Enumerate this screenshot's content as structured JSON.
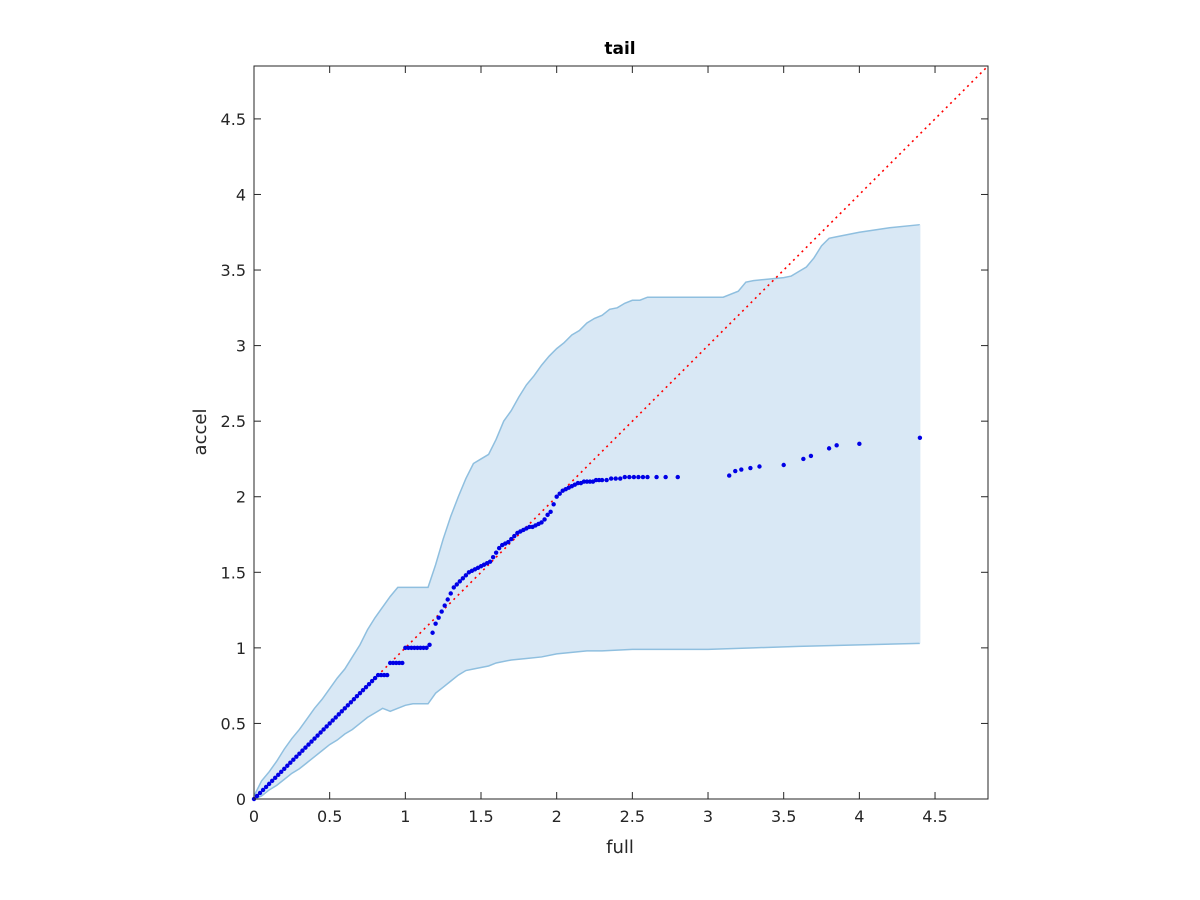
{
  "chart_data": {
    "type": "scatter",
    "title": "tail",
    "xlabel": "full",
    "ylabel": "accel",
    "xlim": [
      0,
      4.85
    ],
    "ylim": [
      0,
      4.85
    ],
    "xticks": [
      0,
      0.5,
      1,
      1.5,
      2,
      2.5,
      3,
      3.5,
      4,
      4.5
    ],
    "yticks": [
      0,
      0.5,
      1,
      1.5,
      2,
      2.5,
      3,
      3.5,
      4,
      4.5
    ],
    "xtick_labels": [
      "0",
      "0.5",
      "1",
      "1.5",
      "2",
      "2.5",
      "3",
      "3.5",
      "4",
      "4.5"
    ],
    "ytick_labels": [
      "0",
      "0.5",
      "1",
      "1.5",
      "2",
      "2.5",
      "3",
      "3.5",
      "4",
      "4.5"
    ],
    "grid": false,
    "colors": {
      "points": "#0000e6",
      "band_fill": "#d9e8f5",
      "band_edge": "#8fbfdf",
      "reference_line": "#ff0000"
    },
    "reference_line": {
      "x": [
        0,
        4.85
      ],
      "y": [
        0,
        4.85
      ],
      "style": "dotted"
    },
    "band_upper": {
      "x": [
        0,
        0.05,
        0.1,
        0.15,
        0.2,
        0.25,
        0.3,
        0.35,
        0.4,
        0.45,
        0.5,
        0.55,
        0.6,
        0.65,
        0.7,
        0.75,
        0.8,
        0.85,
        0.9,
        0.95,
        1.0,
        1.05,
        1.15,
        1.2,
        1.25,
        1.3,
        1.35,
        1.4,
        1.45,
        1.5,
        1.55,
        1.6,
        1.65,
        1.7,
        1.75,
        1.8,
        1.85,
        1.9,
        1.95,
        2.0,
        2.05,
        2.1,
        2.15,
        2.2,
        2.25,
        2.3,
        2.35,
        2.4,
        2.45,
        2.5,
        2.55,
        2.6,
        2.65,
        2.7,
        2.8,
        2.9,
        3.0,
        3.1,
        3.2,
        3.25,
        3.3,
        3.4,
        3.5,
        3.55,
        3.6,
        3.65,
        3.7,
        3.75,
        3.8,
        3.85,
        3.9,
        4.0,
        4.2,
        4.4
      ],
      "y": [
        0.02,
        0.12,
        0.18,
        0.25,
        0.33,
        0.4,
        0.46,
        0.53,
        0.6,
        0.66,
        0.73,
        0.8,
        0.86,
        0.94,
        1.02,
        1.12,
        1.2,
        1.27,
        1.34,
        1.4,
        1.4,
        1.4,
        1.4,
        1.55,
        1.72,
        1.87,
        2.0,
        2.12,
        2.22,
        2.25,
        2.28,
        2.38,
        2.5,
        2.57,
        2.66,
        2.74,
        2.8,
        2.87,
        2.93,
        2.98,
        3.02,
        3.07,
        3.1,
        3.15,
        3.18,
        3.2,
        3.24,
        3.25,
        3.28,
        3.3,
        3.3,
        3.32,
        3.32,
        3.32,
        3.32,
        3.32,
        3.32,
        3.32,
        3.36,
        3.42,
        3.43,
        3.44,
        3.45,
        3.46,
        3.49,
        3.52,
        3.58,
        3.66,
        3.71,
        3.72,
        3.73,
        3.75,
        3.78,
        3.8
      ]
    },
    "band_lower": {
      "x": [
        0,
        0.05,
        0.1,
        0.15,
        0.2,
        0.25,
        0.3,
        0.35,
        0.4,
        0.45,
        0.5,
        0.55,
        0.6,
        0.65,
        0.7,
        0.75,
        0.8,
        0.85,
        0.9,
        0.95,
        1.0,
        1.05,
        1.1,
        1.15,
        1.2,
        1.25,
        1.3,
        1.35,
        1.4,
        1.45,
        1.5,
        1.55,
        1.6,
        1.7,
        1.8,
        1.9,
        2.0,
        2.1,
        2.2,
        2.3,
        2.5,
        2.7,
        3.0,
        3.3,
        3.6,
        4.0,
        4.4
      ],
      "y": [
        0.0,
        0.02,
        0.06,
        0.09,
        0.13,
        0.17,
        0.2,
        0.24,
        0.28,
        0.32,
        0.36,
        0.39,
        0.43,
        0.46,
        0.5,
        0.54,
        0.57,
        0.6,
        0.58,
        0.6,
        0.62,
        0.63,
        0.63,
        0.63,
        0.7,
        0.74,
        0.78,
        0.82,
        0.85,
        0.86,
        0.87,
        0.88,
        0.9,
        0.92,
        0.93,
        0.94,
        0.96,
        0.97,
        0.98,
        0.98,
        0.99,
        0.99,
        0.99,
        1.0,
        1.01,
        1.02,
        1.03
      ]
    },
    "points": {
      "x": [
        0.0,
        0.02,
        0.04,
        0.06,
        0.08,
        0.1,
        0.12,
        0.14,
        0.16,
        0.18,
        0.2,
        0.22,
        0.24,
        0.26,
        0.28,
        0.3,
        0.32,
        0.34,
        0.36,
        0.38,
        0.4,
        0.42,
        0.44,
        0.46,
        0.48,
        0.5,
        0.52,
        0.54,
        0.56,
        0.58,
        0.6,
        0.62,
        0.64,
        0.66,
        0.68,
        0.7,
        0.72,
        0.74,
        0.76,
        0.78,
        0.8,
        0.82,
        0.84,
        0.86,
        0.88,
        0.9,
        0.92,
        0.94,
        0.96,
        0.98,
        1.0,
        1.02,
        1.04,
        1.06,
        1.08,
        1.1,
        1.12,
        1.14,
        1.16,
        1.18,
        1.2,
        1.22,
        1.24,
        1.26,
        1.28,
        1.3,
        1.32,
        1.34,
        1.36,
        1.38,
        1.4,
        1.42,
        1.44,
        1.46,
        1.48,
        1.5,
        1.52,
        1.54,
        1.56,
        1.58,
        1.6,
        1.62,
        1.64,
        1.66,
        1.68,
        1.7,
        1.72,
        1.74,
        1.76,
        1.78,
        1.8,
        1.82,
        1.84,
        1.86,
        1.88,
        1.9,
        1.92,
        1.94,
        1.96,
        1.98,
        2.0,
        2.02,
        2.04,
        2.06,
        2.08,
        2.1,
        2.12,
        2.14,
        2.16,
        2.18,
        2.2,
        2.22,
        2.24,
        2.26,
        2.28,
        2.3,
        2.33,
        2.36,
        2.39,
        2.42,
        2.45,
        2.48,
        2.51,
        2.54,
        2.57,
        2.6,
        2.66,
        2.72,
        2.8,
        3.14,
        3.18,
        3.22,
        3.28,
        3.34,
        3.5,
        3.63,
        3.68,
        3.8,
        3.85,
        4.0,
        4.4
      ],
      "y": [
        0.0,
        0.02,
        0.04,
        0.06,
        0.08,
        0.1,
        0.12,
        0.14,
        0.16,
        0.18,
        0.2,
        0.22,
        0.24,
        0.26,
        0.28,
        0.3,
        0.32,
        0.34,
        0.36,
        0.38,
        0.4,
        0.42,
        0.44,
        0.46,
        0.48,
        0.5,
        0.52,
        0.54,
        0.56,
        0.58,
        0.6,
        0.62,
        0.64,
        0.66,
        0.68,
        0.7,
        0.72,
        0.74,
        0.76,
        0.78,
        0.8,
        0.82,
        0.82,
        0.82,
        0.82,
        0.9,
        0.9,
        0.9,
        0.9,
        0.9,
        1.0,
        1.0,
        1.0,
        1.0,
        1.0,
        1.0,
        1.0,
        1.0,
        1.02,
        1.1,
        1.16,
        1.2,
        1.24,
        1.28,
        1.32,
        1.36,
        1.4,
        1.42,
        1.44,
        1.46,
        1.48,
        1.5,
        1.51,
        1.52,
        1.53,
        1.54,
        1.55,
        1.56,
        1.57,
        1.6,
        1.63,
        1.66,
        1.68,
        1.69,
        1.7,
        1.72,
        1.74,
        1.76,
        1.77,
        1.78,
        1.79,
        1.8,
        1.8,
        1.81,
        1.82,
        1.83,
        1.85,
        1.88,
        1.9,
        1.95,
        2.0,
        2.02,
        2.04,
        2.05,
        2.06,
        2.07,
        2.08,
        2.09,
        2.09,
        2.1,
        2.1,
        2.1,
        2.1,
        2.11,
        2.11,
        2.11,
        2.11,
        2.12,
        2.12,
        2.12,
        2.13,
        2.13,
        2.13,
        2.13,
        2.13,
        2.13,
        2.13,
        2.13,
        2.13,
        2.14,
        2.17,
        2.18,
        2.19,
        2.2,
        2.21,
        2.25,
        2.27,
        2.32,
        2.34,
        2.35,
        2.39
      ]
    }
  }
}
